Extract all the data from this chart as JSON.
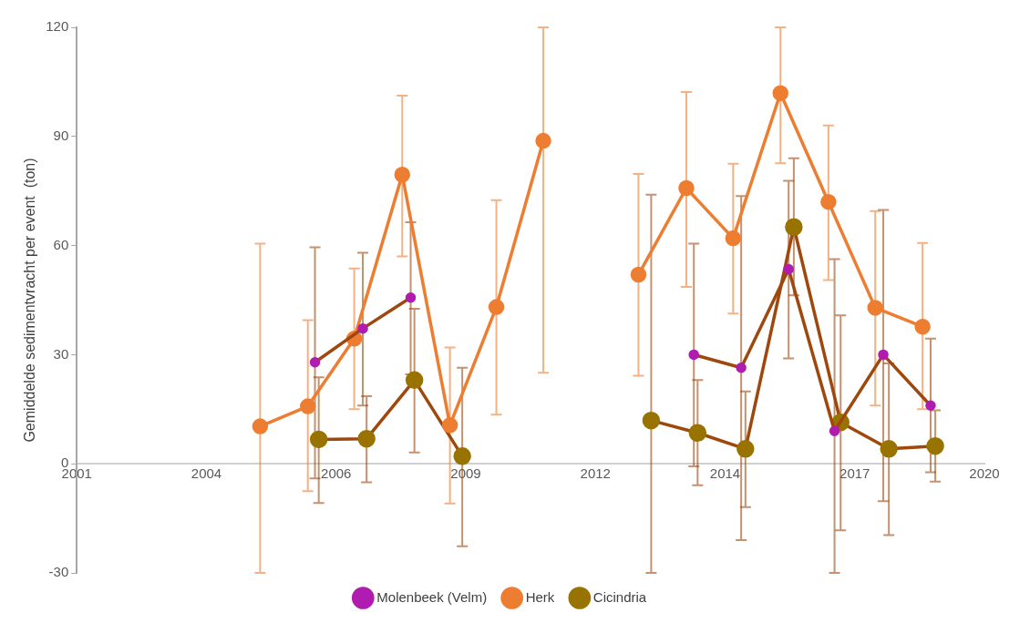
{
  "chart_data": {
    "type": "line",
    "ylabel": "Gemiddelde sedimentvracht per event  (ton)",
    "xlim": [
      "2001-04-20",
      "2020-06-19"
    ],
    "xticks": [
      {
        "value": "2001-04-20",
        "label": "2001"
      },
      {
        "value": "2004-01-15",
        "label": "2004"
      },
      {
        "value": "2006-10-11",
        "label": "2006"
      },
      {
        "value": "2009-07-07",
        "label": "2009"
      },
      {
        "value": "2012-04-02",
        "label": "2012"
      },
      {
        "value": "2014-12-28",
        "label": "2014"
      },
      {
        "value": "2017-09-23",
        "label": "2017"
      },
      {
        "value": "2020-06-19",
        "label": "2020"
      }
    ],
    "ylim": [
      -30,
      120
    ],
    "yticks": [
      -30,
      0,
      30,
      60,
      90,
      120
    ],
    "grid": false,
    "legend": "bottom",
    "marker": "circle",
    "line_style": "solid",
    "series": [
      {
        "name": "Molenbeek (Velm)",
        "color": "#9e480e",
        "colors": [
          "#b01cb0",
          "#b01cb0",
          "#b01cb0",
          null,
          "#b01cb0",
          "#b01cb0",
          "#b01cb0",
          "#b01cb0",
          "#b01cb0",
          "#b01cb0"
        ],
        "x": [
          "2006-05-01",
          "2007-05-05",
          "2008-05-08",
          "2011-04-20",
          "2014-05-01",
          "2015-05-01",
          "2016-05-01",
          "2017-04-20",
          "2018-05-01",
          "2019-05-01"
        ],
        "values": [
          27.9,
          37.2,
          45.7,
          null,
          30,
          26.4,
          53.5,
          9,
          30,
          16
        ],
        "errors": [
          [
            -4,
            59.5
          ],
          [
            16,
            58
          ],
          [
            24.6,
            66.4
          ],
          null,
          [
            -0.7,
            60.5
          ],
          [
            -21,
            73.6
          ],
          [
            29,
            77.8
          ],
          [
            -30,
            56.3
          ],
          [
            -10.3,
            69.8
          ],
          [
            -2.3,
            34.4
          ]
        ]
      },
      {
        "name": "Herk",
        "color": "#ed7d31",
        "x": [
          "2005-03-04",
          "2006-03-07",
          "2007-02-28",
          "2008-03-04",
          "2009-03-07",
          "2010-02-28",
          "2011-02-25",
          "2012-03-14",
          "2013-02-28",
          "2014-03-04",
          "2015-02-28",
          "2016-02-28",
          "2017-03-04",
          "2018-02-28",
          "2019-02-28"
        ],
        "values": [
          10.3,
          15.8,
          34.4,
          79.5,
          10.6,
          43.1,
          88.8,
          null,
          52,
          75.8,
          62,
          101.9,
          72,
          42.9,
          37.7
        ],
        "errors": [
          [
            -30,
            60.5
          ],
          [
            -7.5,
            39.5
          ],
          [
            15,
            53.7
          ],
          [
            57,
            101.2
          ],
          [
            -10.9,
            32
          ],
          [
            13.5,
            72.5
          ],
          [
            25,
            120
          ],
          null,
          [
            24.2,
            79.7
          ],
          [
            48.6,
            102.2
          ],
          [
            41.3,
            82.5
          ],
          [
            82.6,
            120
          ],
          [
            50.5,
            93
          ],
          [
            16,
            69.5
          ],
          [
            15,
            60.7
          ]
        ]
      },
      {
        "name": "Cicindria",
        "color": "#9e480e",
        "colors": [
          "#997300",
          "#997300",
          "#997300",
          "#997300",
          null,
          "#997300",
          "#997300",
          "#997300",
          "#997300",
          "#997300",
          "#997300",
          "#997300"
        ],
        "x": [
          "2006-05-30",
          "2007-06-03",
          "2008-06-06",
          "2009-06-10",
          "2011-07-02",
          "2013-06-06",
          "2014-05-30",
          "2015-06-03",
          "2016-06-10",
          "2017-06-06",
          "2018-06-13",
          "2019-06-06"
        ],
        "values": [
          6.7,
          6.9,
          23,
          2.1,
          null,
          11.9,
          8.5,
          4.1,
          65.1,
          11.4,
          4.1,
          4.9
        ],
        "errors": [
          [
            -10.8,
            23.8
          ],
          [
            -5.1,
            18.6
          ],
          [
            3.1,
            42.6
          ],
          [
            -22.7,
            26.4
          ],
          null,
          [
            -30,
            74
          ],
          [
            -5.9,
            23
          ],
          [
            -11.9,
            19.9
          ],
          [
            46.3,
            84
          ],
          [
            -18.3,
            40.8
          ],
          [
            -19.6,
            27.6
          ],
          [
            -4.9,
            14.7
          ]
        ]
      }
    ]
  }
}
